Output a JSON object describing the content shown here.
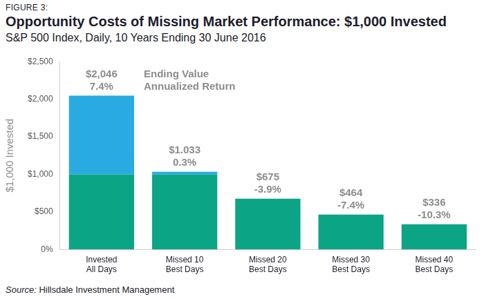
{
  "chart_data": {
    "type": "bar",
    "figure_label": "FIGURE 3:",
    "title": "Opportunity Costs of Missing Market Performance: $1,000 Invested",
    "subtitle": "S&P 500 Index, Daily, 10 Years Ending 30 June 2016",
    "y_label": "$1,000 Invested",
    "categories": [
      "Invested\nAll Days",
      "Missed 10\nBest Days",
      "Missed 20\nBest Days",
      "Missed 30\nBest Days",
      "Missed 40\nBest Days"
    ],
    "series": [
      {
        "color": "#0ba586",
        "values": [
          1000,
          1000,
          675,
          464,
          336
        ]
      },
      {
        "color": "#29abe2",
        "values": [
          1046,
          33,
          null,
          null,
          null
        ]
      }
    ],
    "stacked": true,
    "ending_values": [
      2046,
      1033,
      675,
      464,
      336
    ],
    "ending_value_labels": [
      "$2,046",
      "$1.033",
      "$675",
      "$464",
      "$336"
    ],
    "annualized_returns": [
      7.4,
      0.3,
      -3.9,
      -7.4,
      -10.3
    ],
    "annualized_return_labels": [
      "7.4%",
      "0.3%",
      "-3.9%",
      "-7.4%",
      "-10.3%"
    ],
    "annotations": [
      "Ending Value",
      "Annualized Return"
    ],
    "ylim": [
      0,
      2500
    ],
    "yticks": [
      {
        "value": 0,
        "label": "0%"
      },
      {
        "value": 500,
        "label": "$500"
      },
      {
        "value": 1000,
        "label": "$1,000"
      },
      {
        "value": 1500,
        "label": "$1,500"
      },
      {
        "value": 2000,
        "label": "$2,000"
      },
      {
        "value": 2500,
        "label": "$2,500"
      }
    ],
    "grid": false,
    "source_label": "Source:",
    "source": "Hillsdale Investment Management"
  }
}
